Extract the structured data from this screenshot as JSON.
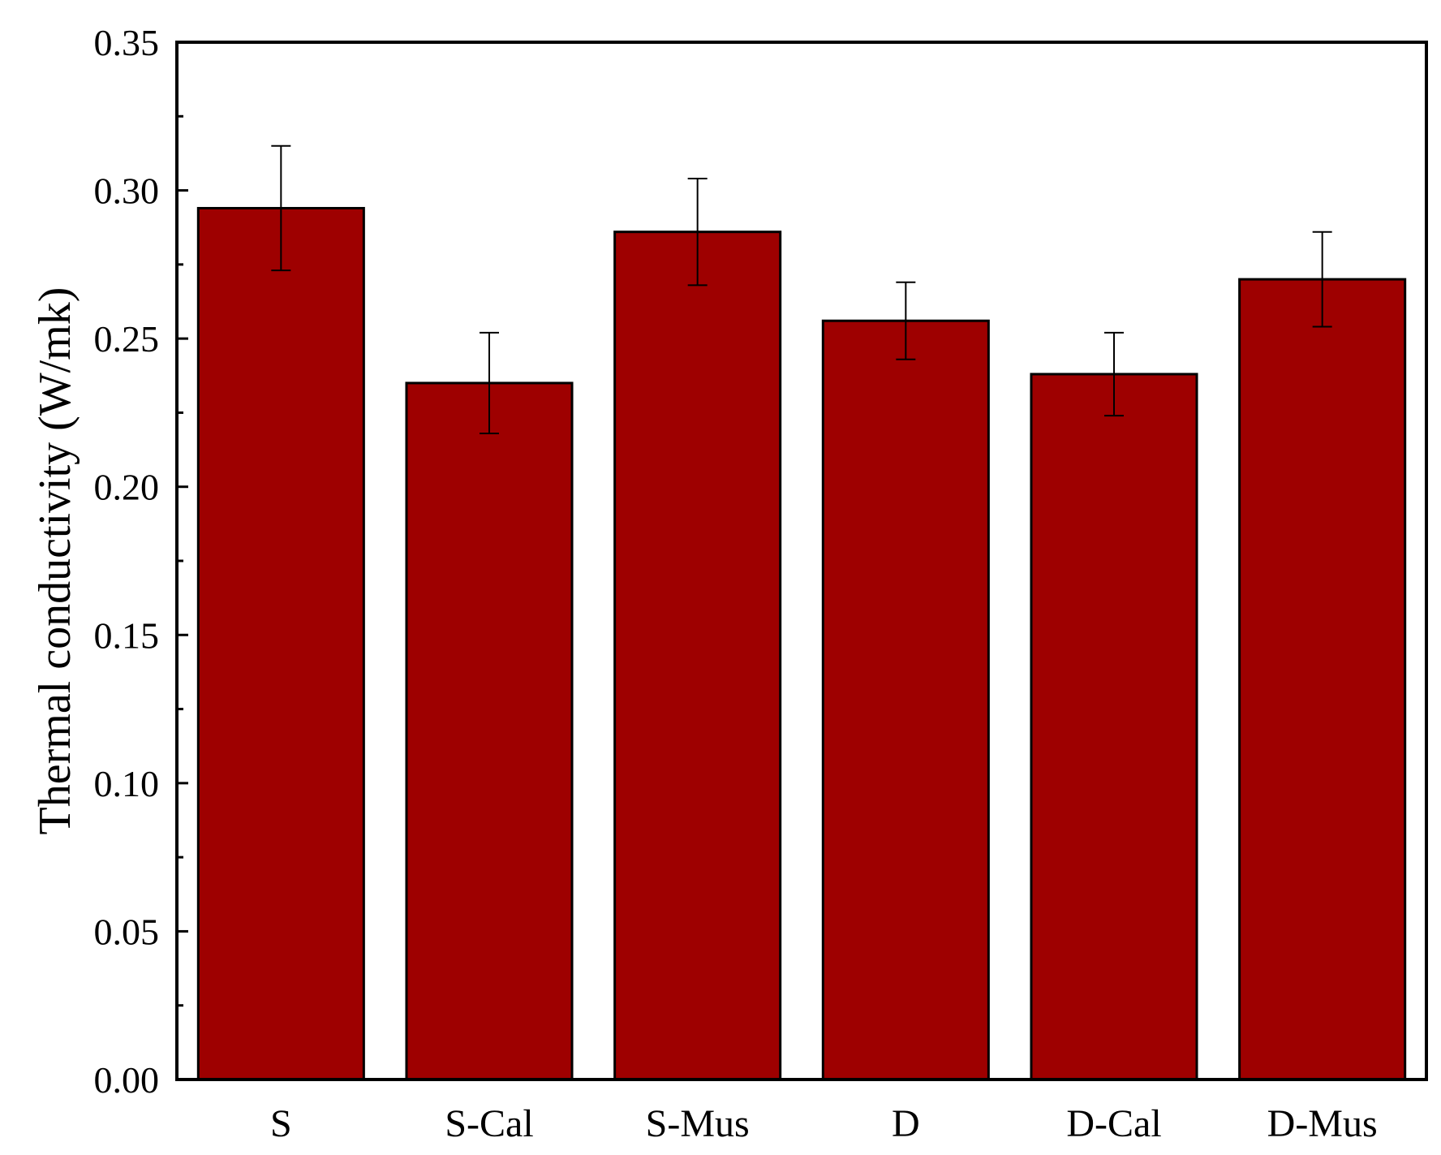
{
  "chart_data": {
    "type": "bar",
    "categories": [
      "S",
      "S-Cal",
      "S-Mus",
      "D",
      "D-Cal",
      "D-Mus"
    ],
    "values": [
      0.294,
      0.235,
      0.286,
      0.256,
      0.238,
      0.27
    ],
    "errors": [
      0.021,
      0.017,
      0.018,
      0.013,
      0.014,
      0.016
    ],
    "title": "",
    "xlabel": "",
    "ylabel": "Thermal conductivity (W/mk)",
    "ylim": [
      0,
      0.35
    ],
    "yticks": [
      "0.00",
      "0.05",
      "0.10",
      "0.15",
      "0.20",
      "0.25",
      "0.30",
      "0.35"
    ],
    "grid": false,
    "bar_color": "#9e0000"
  }
}
